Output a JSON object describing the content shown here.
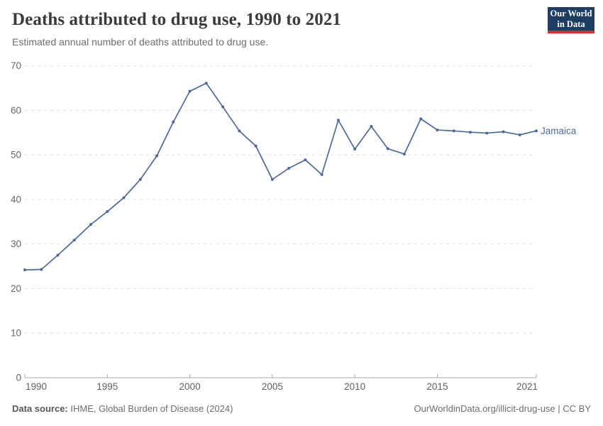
{
  "header": {
    "title": "Deaths attributed to drug use, 1990 to 2021",
    "subtitle": "Estimated annual number of deaths attributed to drug use."
  },
  "logo": {
    "line1": "Our World",
    "line2": "in Data",
    "bg_color": "#1d3d63",
    "accent_color": "#cf352e"
  },
  "footer": {
    "source_label": "Data source:",
    "source_text": " IHME, Global Burden of Disease (2024)",
    "right_text": "OurWorldinData.org/illicit-drug-use | CC BY"
  },
  "chart_data": {
    "type": "line",
    "title": "Deaths attributed to drug use, 1990 to 2021",
    "xlabel": "",
    "ylabel": "",
    "xlim": [
      1990,
      2021
    ],
    "ylim": [
      0,
      70
    ],
    "y_ticks": [
      0,
      10,
      20,
      30,
      40,
      50,
      60,
      70
    ],
    "x_ticks": [
      1990,
      1995,
      2000,
      2005,
      2010,
      2015,
      2021
    ],
    "grid": "horizontal-dashed",
    "legend_position": "end-of-line-label",
    "colors": {
      "line": "#4a69a2",
      "gridline": "#dedede",
      "axis": "#a8a8a8",
      "tick_label": "#666666"
    },
    "series": [
      {
        "name": "Jamaica",
        "color": "#4a69a2",
        "x": [
          1990,
          1991,
          1992,
          1993,
          1994,
          1995,
          1996,
          1997,
          1998,
          1999,
          2000,
          2001,
          2002,
          2003,
          2004,
          2005,
          2006,
          2007,
          2008,
          2009,
          2010,
          2011,
          2012,
          2013,
          2014,
          2015,
          2016,
          2017,
          2018,
          2019,
          2020,
          2021
        ],
        "values": [
          24.2,
          24.3,
          27.5,
          30.9,
          34.4,
          37.3,
          40.4,
          44.5,
          49.8,
          57.4,
          64.3,
          66.1,
          60.8,
          55.4,
          52.0,
          44.5,
          47.0,
          48.9,
          45.6,
          57.8,
          51.3,
          56.4,
          51.4,
          50.2,
          58.1,
          55.6,
          55.4,
          55.1,
          54.9,
          55.2,
          54.5,
          55.4
        ]
      }
    ]
  }
}
